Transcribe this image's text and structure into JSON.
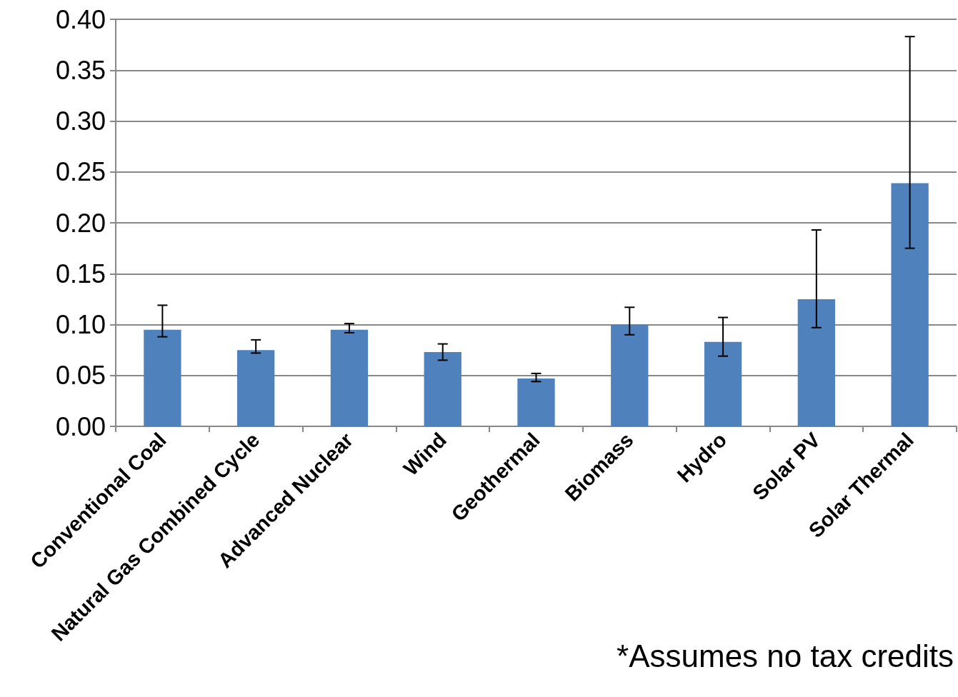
{
  "chart_data": {
    "type": "bar",
    "categories": [
      "Conventional Coal",
      "Natural Gas Combined Cycle",
      "Advanced Nuclear",
      "Wind",
      "Geothermal",
      "Biomass",
      "Hydro",
      "Solar PV",
      "Solar Thermal"
    ],
    "values": [
      0.095,
      0.075,
      0.095,
      0.073,
      0.047,
      0.1,
      0.083,
      0.125,
      0.239
    ],
    "errors": [
      [
        0.088,
        0.119
      ],
      [
        0.072,
        0.085
      ],
      [
        0.092,
        0.101
      ],
      [
        0.065,
        0.081
      ],
      [
        0.044,
        0.052
      ],
      [
        0.09,
        0.117
      ],
      [
        0.069,
        0.107
      ],
      [
        0.097,
        0.193
      ],
      [
        0.175,
        0.383
      ]
    ],
    "color": "#4f81bd",
    "ylim": [
      0,
      0.4
    ],
    "yticks": [
      {
        "value": 0,
        "label": "0.00"
      },
      {
        "value": 0.05,
        "label": "0.05"
      },
      {
        "value": 0.1,
        "label": "0.10"
      },
      {
        "value": 0.15,
        "label": "0.15"
      },
      {
        "value": 0.2,
        "label": "0.20"
      },
      {
        "value": 0.25,
        "label": "0.25"
      },
      {
        "value": 0.3,
        "label": "0.30"
      },
      {
        "value": 0.35,
        "label": "0.35"
      },
      {
        "value": 0.4,
        "label": "0.40"
      }
    ],
    "grid": "y",
    "annotations": [
      "*Assumes no tax credits"
    ]
  }
}
